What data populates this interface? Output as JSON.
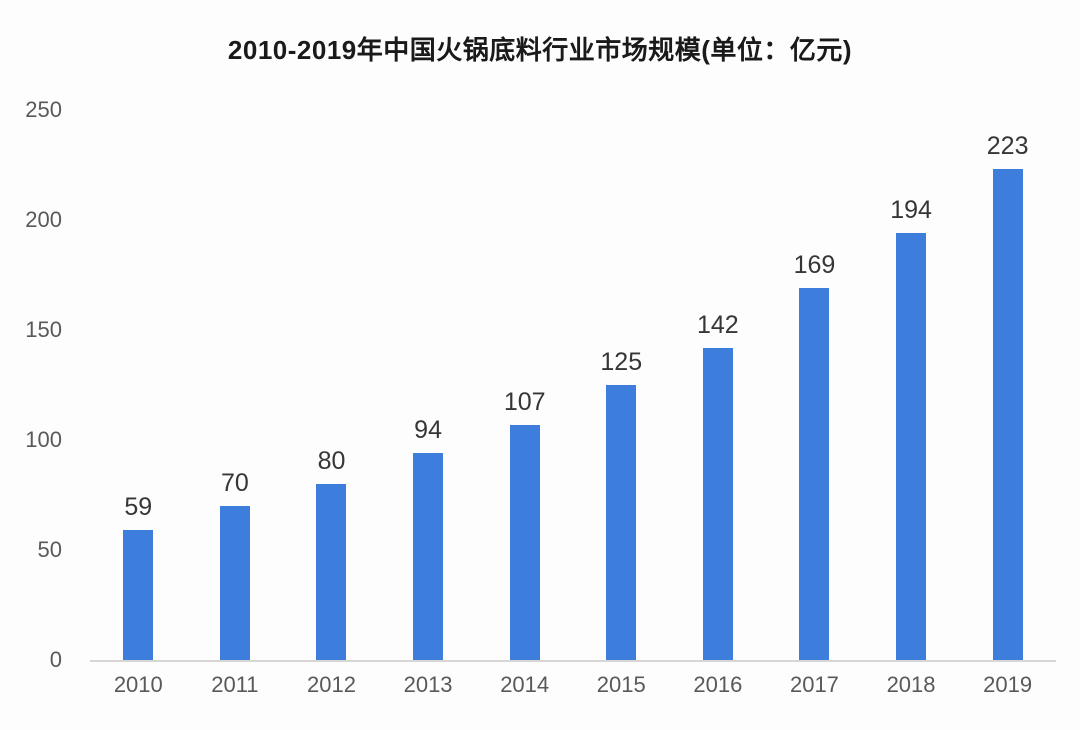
{
  "title": "2010-2019年中国火锅底料行业市场规模(单位：亿元)",
  "colors": {
    "bar": "#3d7edc",
    "axis_line": "#d6d6d6",
    "tick_text": "#595959",
    "value_text": "#363636",
    "title_text": "#1a1a1a",
    "background": "#fdfdfd"
  },
  "chart_data": {
    "type": "bar",
    "title": "2010-2019年中国火锅底料行业市场规模(单位：亿元)",
    "categories": [
      "2010",
      "2011",
      "2012",
      "2013",
      "2014",
      "2015",
      "2016",
      "2017",
      "2018",
      "2019"
    ],
    "values": [
      59,
      70,
      80,
      94,
      107,
      125,
      142,
      169,
      194,
      223
    ],
    "xlabel": "",
    "ylabel": "",
    "unit": "亿元",
    "ylim": [
      0,
      250
    ],
    "yticks": [
      0,
      50,
      100,
      150,
      200,
      250
    ],
    "grid": false,
    "legend_position": "none",
    "data_labels": true
  }
}
